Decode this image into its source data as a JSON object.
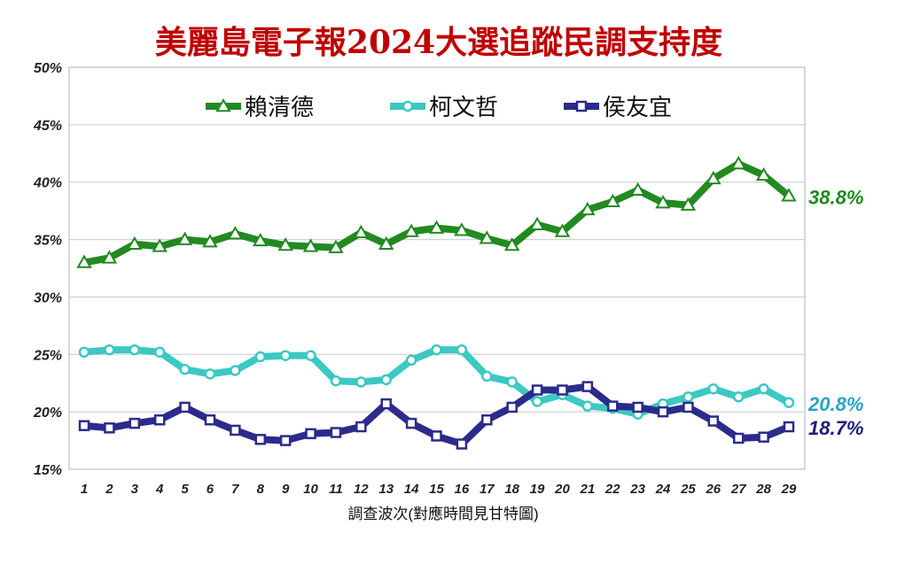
{
  "chart_data": {
    "type": "line",
    "title": "美麗島電子報2024大選追蹤民調支持度",
    "xlabel": "調查波次(對應時間見甘特圖)",
    "ylabel": "",
    "ylim": [
      15,
      50
    ],
    "yticks": [
      "15%",
      "20%",
      "25%",
      "30%",
      "35%",
      "40%",
      "45%",
      "50%"
    ],
    "ytick_values": [
      15,
      20,
      25,
      30,
      35,
      40,
      45,
      50
    ],
    "categories": [
      "1",
      "2",
      "3",
      "4",
      "5",
      "6",
      "7",
      "8",
      "9",
      "10",
      "11",
      "12",
      "13",
      "14",
      "15",
      "16",
      "17",
      "18",
      "19",
      "20",
      "21",
      "22",
      "23",
      "24",
      "25",
      "26",
      "27",
      "28",
      "29"
    ],
    "grid": true,
    "legend_position": "top",
    "series": [
      {
        "name": "賴清德",
        "color": "#218a21",
        "marker": "triangle",
        "values": [
          33.0,
          33.4,
          34.6,
          34.4,
          35.0,
          34.8,
          35.5,
          34.9,
          34.5,
          34.4,
          34.3,
          35.6,
          34.6,
          35.7,
          36.0,
          35.8,
          35.1,
          34.5,
          36.3,
          35.7,
          37.6,
          38.3,
          39.3,
          38.2,
          38.0,
          40.3,
          41.6,
          40.6,
          38.8
        ],
        "end_label": "38.8%"
      },
      {
        "name": "柯文哲",
        "color": "#3cc8c3",
        "marker": "circle",
        "values": [
          25.2,
          25.4,
          25.4,
          25.2,
          23.7,
          23.3,
          23.6,
          24.8,
          24.9,
          24.9,
          22.7,
          22.6,
          22.8,
          24.5,
          25.4,
          25.4,
          23.1,
          22.6,
          20.9,
          21.5,
          20.5,
          20.3,
          19.8,
          20.7,
          21.3,
          22.0,
          21.3,
          22.0,
          20.8
        ],
        "end_label": "20.8%",
        "end_label_color": "#29a3c4"
      },
      {
        "name": "侯友宜",
        "color": "#2b2b8c",
        "marker": "square",
        "values": [
          18.8,
          18.6,
          19.0,
          19.3,
          20.4,
          19.3,
          18.4,
          17.6,
          17.5,
          18.1,
          18.2,
          18.7,
          20.7,
          19.0,
          17.9,
          17.2,
          19.3,
          20.4,
          21.9,
          21.9,
          22.2,
          20.5,
          20.4,
          20.0,
          20.4,
          19.2,
          17.7,
          17.8,
          18.7
        ],
        "end_label": "18.7%",
        "end_label_color": "#1e1e7a"
      }
    ]
  }
}
